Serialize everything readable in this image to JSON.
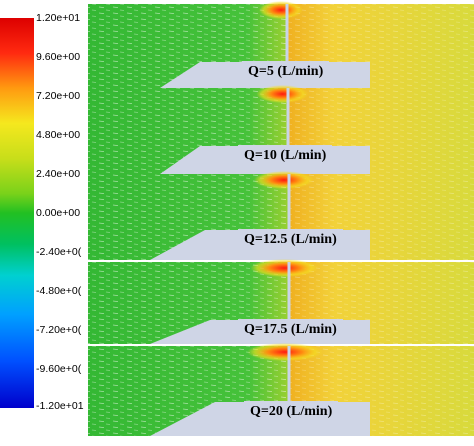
{
  "chart_data": {
    "type": "heatmap",
    "colorbar": {
      "tick_labels": [
        "1.20e+01",
        "9.60e+00",
        "7.20e+00",
        "4.80e+00",
        "2.40e+00",
        "0.00e+00",
        "-2.40e+0(",
        "-4.80e+0(",
        "-7.20e+0(",
        "-9.60e+0(",
        "-1.20e+01"
      ],
      "values": [
        12.0,
        9.6,
        7.2,
        4.8,
        2.4,
        0.0,
        -2.4,
        -4.8,
        -7.2,
        -9.6,
        -12.0
      ],
      "range": [
        -12.0,
        12.0
      ],
      "colormap": [
        "#0000cc",
        "#0050ff",
        "#00a0ff",
        "#00d0d0",
        "#00c060",
        "#22c022",
        "#7ad21a",
        "#c8de1a",
        "#f5e81e",
        "#ff9a10",
        "#ff2a10",
        "#dd0000"
      ]
    },
    "panels": [
      {
        "label": "Q=5 (L/min)",
        "flow_rate": 5
      },
      {
        "label": "Q=10 (L/min)",
        "flow_rate": 10
      },
      {
        "label": "Q=12.5 (L/min)",
        "flow_rate": 12.5
      },
      {
        "label": "Q=17.5 (L/min)",
        "flow_rate": 17.5
      },
      {
        "label": "Q=20 (L/min)",
        "flow_rate": 20
      }
    ],
    "colors": {
      "upstream": "#3cbd3c",
      "downstream": "#e8c93a",
      "jet_high": "#ff3010",
      "label_box": "#cfd5e6"
    }
  }
}
